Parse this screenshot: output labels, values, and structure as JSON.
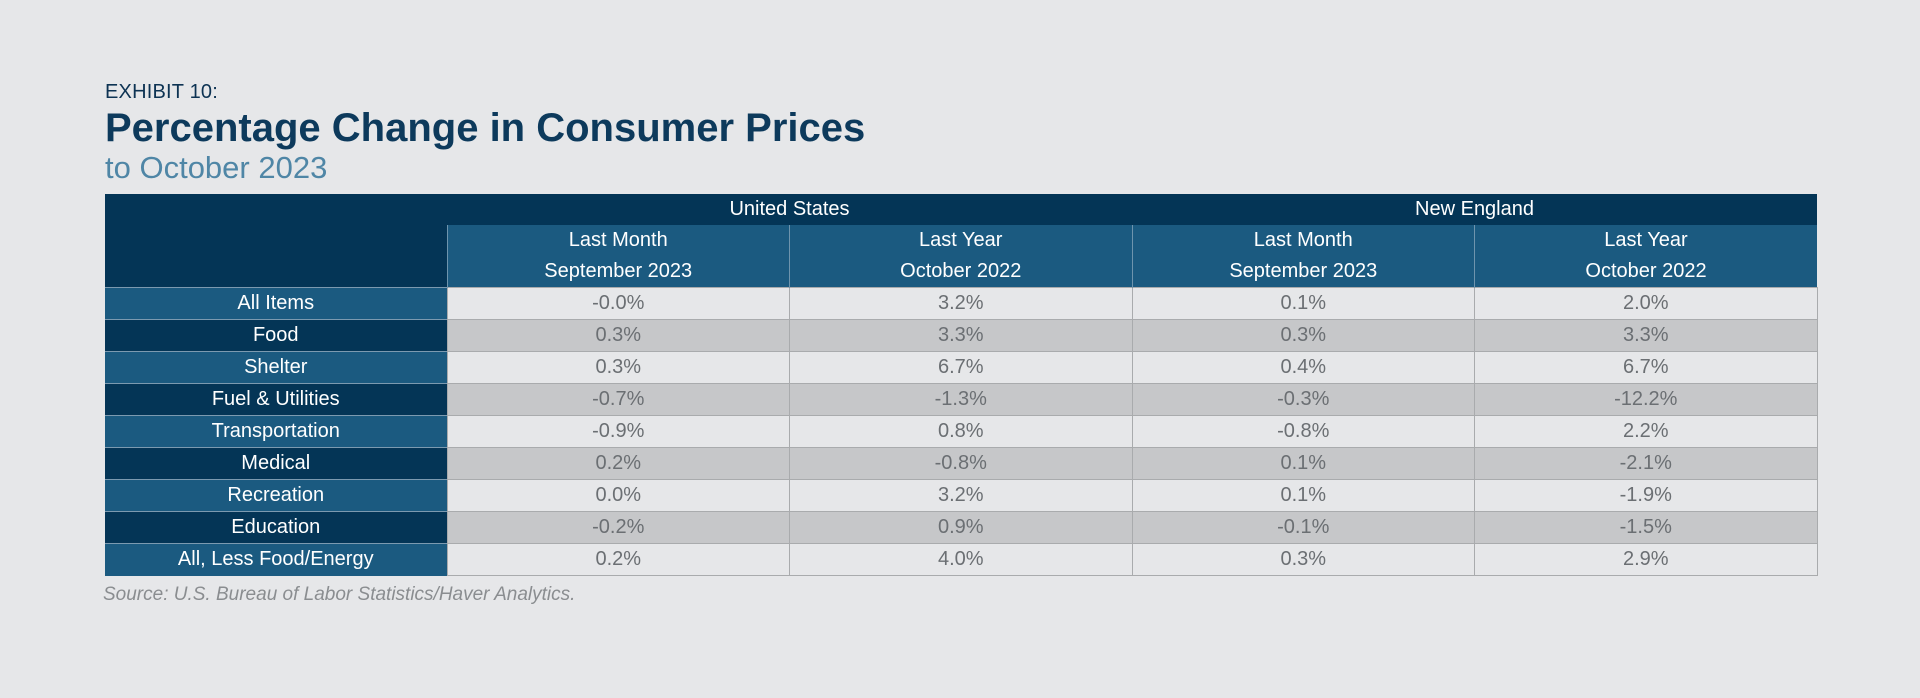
{
  "header": {
    "exhibit": "EXHIBIT 10:",
    "title": "Percentage Change in Consumer Prices",
    "subtitle": "to October 2023"
  },
  "chart_data": {
    "type": "table",
    "groups": [
      "United States",
      "New England"
    ],
    "columns": [
      {
        "line1": "Last Month",
        "line2": "September 2023"
      },
      {
        "line1": "Last Year",
        "line2": "October 2022"
      },
      {
        "line1": "Last Month",
        "line2": "September 2023"
      },
      {
        "line1": "Last Year",
        "line2": "October 2022"
      }
    ],
    "rows": [
      {
        "label": "All Items",
        "values": [
          "-0.0%",
          "3.2%",
          "0.1%",
          "2.0%"
        ]
      },
      {
        "label": "Food",
        "values": [
          "0.3%",
          "3.3%",
          "0.3%",
          "3.3%"
        ]
      },
      {
        "label": "Shelter",
        "values": [
          "0.3%",
          "6.7%",
          "0.4%",
          "6.7%"
        ]
      },
      {
        "label": "Fuel & Utilities",
        "values": [
          "-0.7%",
          "-1.3%",
          "-0.3%",
          "-12.2%"
        ]
      },
      {
        "label": "Transportation",
        "values": [
          "-0.9%",
          "0.8%",
          "-0.8%",
          "2.2%"
        ]
      },
      {
        "label": "Medical",
        "values": [
          "0.2%",
          "-0.8%",
          "0.1%",
          "-2.1%"
        ]
      },
      {
        "label": "Recreation",
        "values": [
          "0.0%",
          "3.2%",
          "0.1%",
          "-1.9%"
        ]
      },
      {
        "label": "Education",
        "values": [
          "-0.2%",
          "0.9%",
          "-0.1%",
          "-1.5%"
        ]
      },
      {
        "label": "All, Less Food/Energy",
        "values": [
          "0.2%",
          "4.0%",
          "0.3%",
          "2.9%"
        ]
      }
    ],
    "colors": {
      "header_dark": "#043556",
      "header_light": "#1b5a80",
      "row_light": "#e6e7e9",
      "row_dark": "#c6c7c9"
    }
  },
  "source": "Source: U.S. Bureau of Labor Statistics/Haver Analytics."
}
